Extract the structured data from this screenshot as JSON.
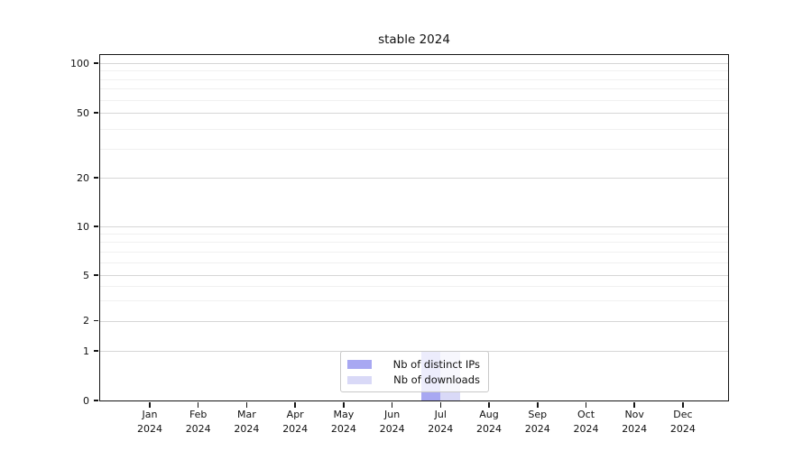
{
  "title": "stable 2024",
  "chart_data": {
    "type": "bar",
    "title": "stable 2024",
    "categories": [
      "Jan 2024",
      "Feb 2024",
      "Mar 2024",
      "Apr 2024",
      "May 2024",
      "Jun 2024",
      "Jul 2024",
      "Aug 2024",
      "Sep 2024",
      "Oct 2024",
      "Nov 2024",
      "Dec 2024"
    ],
    "x_tick_line1": [
      "Jan",
      "Feb",
      "Mar",
      "Apr",
      "May",
      "Jun",
      "Jul",
      "Aug",
      "Sep",
      "Oct",
      "Nov",
      "Dec"
    ],
    "x_tick_line2": "2024",
    "series": [
      {
        "name": "Nb of distinct IPs",
        "color": "#a8a8f2",
        "values": [
          0,
          0,
          0,
          0,
          0,
          0,
          1,
          0,
          0,
          0,
          0,
          0
        ]
      },
      {
        "name": "Nb of downloads",
        "color": "#d9d9f7",
        "values": [
          0,
          0,
          0,
          0,
          0,
          0,
          1,
          0,
          0,
          0,
          0,
          0
        ]
      }
    ],
    "y_axis": {
      "scale": "symlog",
      "major_ticks": [
        0,
        1,
        2,
        5,
        10,
        20,
        50,
        100
      ],
      "minor_gridlines": [
        3,
        4,
        6,
        7,
        8,
        9,
        30,
        40,
        60,
        70,
        80,
        90
      ]
    },
    "legend": {
      "position": "lower center",
      "entries": [
        "Nb of distinct IPs",
        "Nb of downloads"
      ]
    },
    "grid": "both",
    "colors": {
      "major_grid": "#d6d6d6",
      "minor_grid": "#f0f0f0",
      "spine": "#151515",
      "background": "#ffffff"
    }
  }
}
